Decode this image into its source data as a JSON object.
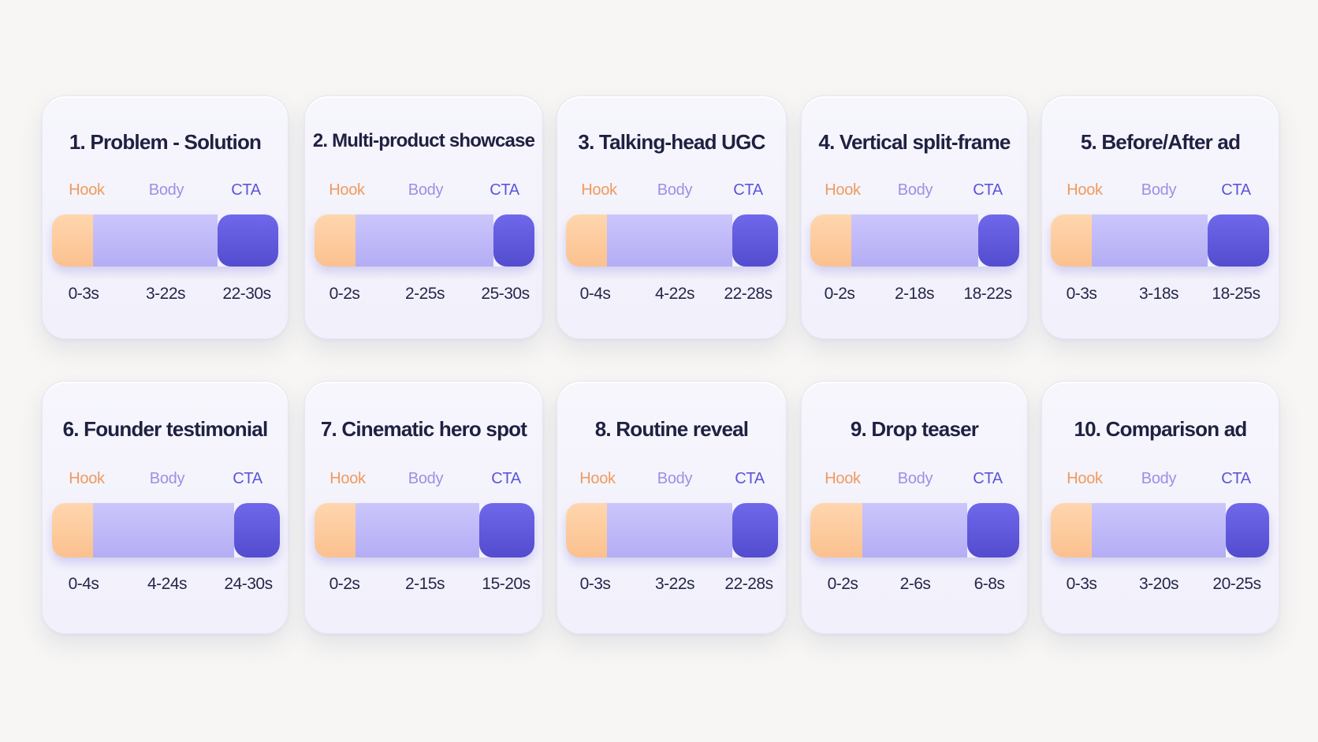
{
  "labels": {
    "hook": "Hook",
    "body": "Body",
    "cta": "CTA"
  },
  "colors": {
    "hook": "#fbc18f",
    "body": "#b4adf5",
    "cta": "#5b55d9",
    "title": "#1f2142"
  },
  "cards": [
    {
      "title": "1. Problem - Solution",
      "hook": "0-3s",
      "body": "3-22s",
      "cta": "22-30s",
      "segments_s": [
        3,
        19,
        8
      ]
    },
    {
      "title": "2. Multi-product showcase",
      "hook": "0-2s",
      "body": "2-25s",
      "cta": "25-30s",
      "segments_s": [
        2,
        23,
        5
      ]
    },
    {
      "title": "3. Talking-head UGC",
      "hook": "0-4s",
      "body": "4-22s",
      "cta": "22-28s",
      "segments_s": [
        4,
        18,
        6
      ]
    },
    {
      "title": "4. Vertical split-frame",
      "hook": "0-2s",
      "body": "2-18s",
      "cta": "18-22s",
      "segments_s": [
        2,
        16,
        4
      ]
    },
    {
      "title": "5. Before/After ad",
      "hook": "0-3s",
      "body": "3-18s",
      "cta": "18-25s",
      "segments_s": [
        3,
        15,
        7
      ]
    },
    {
      "title": "6. Founder testimonial",
      "hook": "0-4s",
      "body": "4-24s",
      "cta": "24-30s",
      "segments_s": [
        4,
        20,
        6
      ]
    },
    {
      "title": "7. Cinematic hero spot",
      "hook": "0-2s",
      "body": "2-15s",
      "cta": "15-20s",
      "segments_s": [
        2,
        13,
        5
      ]
    },
    {
      "title": "8. Routine reveal",
      "hook": "0-3s",
      "body": "3-22s",
      "cta": "22-28s",
      "segments_s": [
        3,
        19,
        6
      ]
    },
    {
      "title": "9. Drop teaser",
      "hook": "0-2s",
      "body": "2-6s",
      "cta": "6-8s",
      "segments_s": [
        2,
        4,
        2
      ]
    },
    {
      "title": "10. Comparison ad",
      "hook": "0-3s",
      "body": "3-20s",
      "cta": "20-25s",
      "segments_s": [
        3,
        17,
        5
      ]
    }
  ]
}
